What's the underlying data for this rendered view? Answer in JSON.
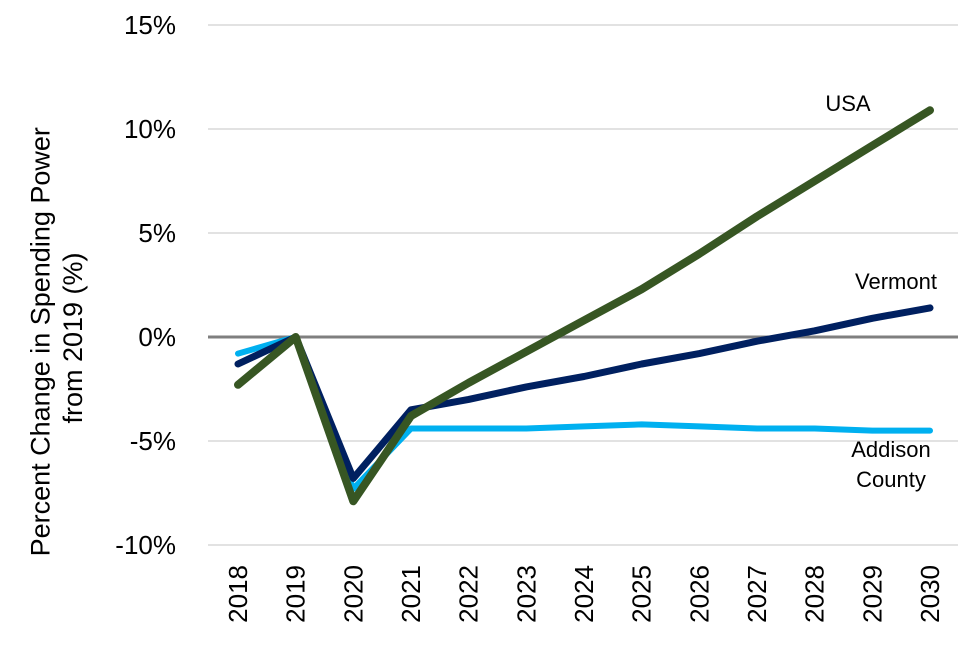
{
  "chart_data": {
    "type": "line",
    "ylabel": "Percent Change in Spending Power from 2019 (%)",
    "ylabel_lines": [
      "Percent Change in Spending Power",
      "from 2019 (%)"
    ],
    "xlabel": "",
    "x": [
      "2018",
      "2019",
      "2020",
      "2021",
      "2022",
      "2023",
      "2024",
      "2025",
      "2026",
      "2027",
      "2028",
      "2029",
      "2030"
    ],
    "ylim": [
      -10,
      15
    ],
    "yticks": [
      -10,
      -5,
      0,
      5,
      10,
      15
    ],
    "ytick_labels": [
      "-10%",
      "-5%",
      "0%",
      "5%",
      "10%",
      "15%"
    ],
    "grid": true,
    "series": [
      {
        "name": "Addison County",
        "label_lines": [
          "Addison",
          "County"
        ],
        "color": "#00b0f0",
        "values": [
          -0.8,
          0.0,
          -7.3,
          -4.4,
          -4.4,
          -4.4,
          -4.3,
          -4.2,
          -4.3,
          -4.4,
          -4.4,
          -4.5,
          -4.5
        ]
      },
      {
        "name": "Vermont",
        "label_lines": [
          "Vermont"
        ],
        "color": "#002060",
        "values": [
          -1.3,
          0.0,
          -6.8,
          -3.5,
          -3.0,
          -2.4,
          -1.9,
          -1.3,
          -0.8,
          -0.2,
          0.3,
          0.9,
          1.4
        ]
      },
      {
        "name": "USA",
        "label_lines": [
          "USA"
        ],
        "color": "#375623",
        "values": [
          -2.3,
          0.0,
          -7.9,
          -3.8,
          -2.2,
          -0.7,
          0.8,
          2.3,
          4.0,
          5.8,
          7.5,
          9.2,
          10.9
        ]
      }
    ]
  }
}
